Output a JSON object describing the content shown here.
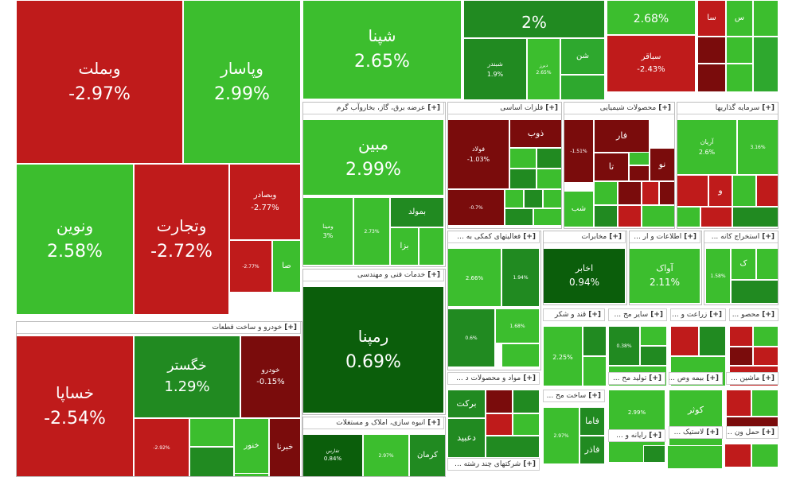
{
  "chart_data": {
    "type": "treemap",
    "colors": {
      "up_strong": "#2ea82e",
      "up": "#3cbe2e",
      "up_mid": "#218a21",
      "up_dark": "#0b5e0b",
      "down": "#bf1b1b",
      "down_dark": "#7a0c0c"
    },
    "expand_marker": "[+]",
    "groups": [
      {
        "name": "خودرو و ساخت قطعات"
      },
      {
        "name": "عرضه برق، گاز، بخاروآب گرم"
      },
      {
        "name": "فلزات اساسی"
      },
      {
        "name": "محصولات شیمیایی"
      },
      {
        "name": "سرمایه گذاریها"
      },
      {
        "name": "خدمات فنی و مهندسی"
      },
      {
        "name": "فعالیتهای کمکی به ..."
      },
      {
        "name": "مخابرات"
      },
      {
        "name": "اطلاعات و ار ..."
      },
      {
        "name": "استخراج کانه ..."
      },
      {
        "name": "قند و شکر"
      },
      {
        "name": "سایر مح ..."
      },
      {
        "name": "زراعت و ..."
      },
      {
        "name": "محصو ..."
      },
      {
        "name": "مواد و محصولات د ..."
      },
      {
        "name": "ساخت مح ..."
      },
      {
        "name": "تولید مح ..."
      },
      {
        "name": "بیمه وص ..."
      },
      {
        "name": "ماشین ..."
      },
      {
        "name": "انبوه سازی، املاک و مستغلات"
      },
      {
        "name": "رایانه و ..."
      },
      {
        "name": "لاستیک ..."
      },
      {
        "name": "حمل ون ..."
      },
      {
        "name": "شرکتهای چند رشته ..."
      }
    ],
    "stocks": [
      {
        "name": "وبملت",
        "change": "-2.97%"
      },
      {
        "name": "وپاسار",
        "change": "2.99%"
      },
      {
        "name": "ونوین",
        "change": "2.58%"
      },
      {
        "name": "وتجارت",
        "change": "-2.72%"
      },
      {
        "name": "وبصادر",
        "change": "-2.77%"
      },
      {
        "name": "",
        "change": "-2.77%"
      },
      {
        "name": "صا",
        "change": ""
      },
      {
        "name": "شپنا",
        "change": "2.65%"
      },
      {
        "name": "",
        "change": "2%"
      },
      {
        "name": "",
        "change": "2.68%"
      },
      {
        "name": "شبندر",
        "change": "1.9%"
      },
      {
        "name": "دیرز",
        "change": "2.65%"
      },
      {
        "name": "شن",
        "change": ""
      },
      {
        "name": "سباقر",
        "change": "-2.43%"
      },
      {
        "name": "سا",
        "change": ""
      },
      {
        "name": "س",
        "change": ""
      },
      {
        "name": "مبین",
        "change": "2.99%"
      },
      {
        "name": "بمولد",
        "change": ""
      },
      {
        "name": "ومینا",
        "change": "3%"
      },
      {
        "name": "",
        "change": "2.73%"
      },
      {
        "name": "بزا",
        "change": ""
      },
      {
        "name": "ذوب",
        "change": ""
      },
      {
        "name": "فولاد",
        "change": "-1.03%"
      },
      {
        "name": "",
        "change": "-0.7%"
      },
      {
        "name": "فار",
        "change": ""
      },
      {
        "name": "",
        "change": "-1.51%"
      },
      {
        "name": "تا",
        "change": ""
      },
      {
        "name": "نو",
        "change": ""
      },
      {
        "name": "شب",
        "change": ""
      },
      {
        "name": "آریان",
        "change": "2.6%"
      },
      {
        "name": "",
        "change": "3.16%"
      },
      {
        "name": "و",
        "change": ""
      },
      {
        "name": "رمپنا",
        "change": "0.69%"
      },
      {
        "name": "",
        "change": "2.66%"
      },
      {
        "name": "",
        "change": "1.94%"
      },
      {
        "name": "",
        "change": "0.6%"
      },
      {
        "name": "",
        "change": "1.68%"
      },
      {
        "name": "اخابر",
        "change": "0.94%"
      },
      {
        "name": "آواک",
        "change": "2.11%"
      },
      {
        "name": "ک",
        "change": ""
      },
      {
        "name": "",
        "change": "1.58%"
      },
      {
        "name": "",
        "change": "2.25%"
      },
      {
        "name": "",
        "change": "0.38%"
      },
      {
        "name": "برکت",
        "change": ""
      },
      {
        "name": "دعبید",
        "change": ""
      },
      {
        "name": "فاما",
        "change": ""
      },
      {
        "name": "فاذر",
        "change": ""
      },
      {
        "name": "",
        "change": "2.97%"
      },
      {
        "name": "",
        "change": "2.99%"
      },
      {
        "name": "کوثر",
        "change": ""
      },
      {
        "name": "خگستر",
        "change": "1.29%"
      },
      {
        "name": "خودرو",
        "change": "-0.15%"
      },
      {
        "name": "خساپا",
        "change": "-2.54%"
      },
      {
        "name": "",
        "change": "-2.92%"
      },
      {
        "name": "خنور",
        "change": ""
      },
      {
        "name": "خبرنا",
        "change": ""
      },
      {
        "name": "تفارس",
        "change": "0.84%"
      },
      {
        "name": "",
        "change": "2.97%"
      },
      {
        "name": "کرمان",
        "change": ""
      }
    ]
  }
}
